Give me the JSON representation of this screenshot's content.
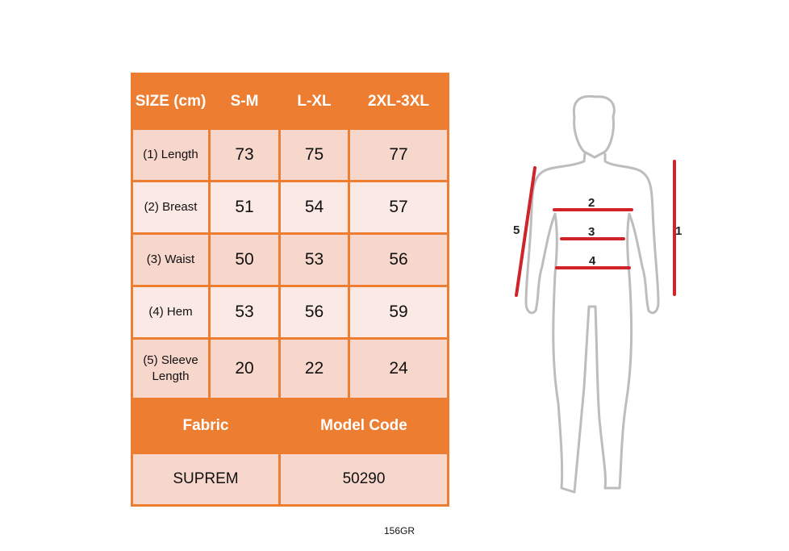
{
  "table": {
    "headers": [
      "SIZE (cm)",
      "S-M",
      "L-XL",
      "2XL-3XL"
    ],
    "rows": [
      {
        "label": "(1) Length",
        "values": [
          "73",
          "75",
          "77"
        ]
      },
      {
        "label": "(2) Breast",
        "values": [
          "51",
          "54",
          "57"
        ]
      },
      {
        "label": "(3) Waist",
        "values": [
          "50",
          "53",
          "56"
        ]
      },
      {
        "label": "(4) Hem",
        "values": [
          "53",
          "56",
          "59"
        ]
      },
      {
        "label": "(5) Sleeve Length",
        "values": [
          "20",
          "22",
          "24"
        ]
      }
    ],
    "footer_headers": [
      "Fabric",
      "Model Code"
    ],
    "footer_values": [
      "SUPREM",
      "50290"
    ]
  },
  "code": "156GR",
  "figure": {
    "markers": [
      "1",
      "2",
      "3",
      "4",
      "5"
    ]
  },
  "colors": {
    "accent": "#ed7d31",
    "row_dark": "#f7d6cc",
    "row_light": "#fbe9e5",
    "measure_line": "#d0232a"
  }
}
